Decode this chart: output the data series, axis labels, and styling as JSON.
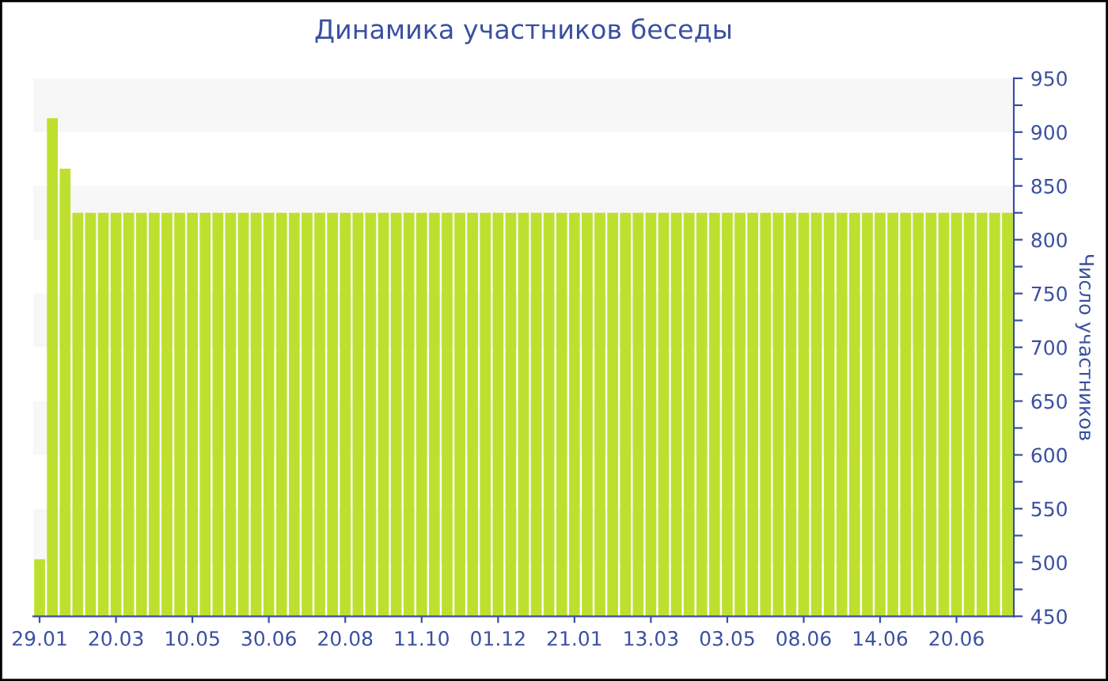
{
  "chart_data": {
    "type": "bar",
    "title": "Динамика участников беседы",
    "ylabel": "Число участников",
    "categories": [
      "29.01",
      null,
      null,
      null,
      null,
      null,
      "20.03",
      null,
      null,
      null,
      null,
      null,
      "10.05",
      null,
      null,
      null,
      null,
      null,
      "30.06",
      null,
      null,
      null,
      null,
      null,
      "20.08",
      null,
      null,
      null,
      null,
      null,
      "11.10",
      null,
      null,
      null,
      null,
      null,
      "01.12",
      null,
      null,
      null,
      null,
      null,
      "21.01",
      null,
      null,
      null,
      null,
      null,
      "13.03",
      null,
      null,
      null,
      null,
      null,
      "03.05",
      null,
      null,
      null,
      null,
      null,
      "08.06",
      null,
      null,
      null,
      null,
      null,
      "14.06",
      null,
      null,
      null,
      null,
      null,
      "20.06",
      null,
      null,
      null,
      null
    ],
    "values": [
      503,
      913,
      866,
      825,
      825,
      825,
      825,
      825,
      825,
      825,
      825,
      825,
      825,
      825,
      825,
      825,
      825,
      825,
      825,
      825,
      825,
      825,
      825,
      825,
      825,
      825,
      825,
      825,
      825,
      825,
      825,
      825,
      825,
      825,
      825,
      825,
      825,
      825,
      825,
      825,
      825,
      825,
      825,
      825,
      825,
      825,
      825,
      825,
      825,
      825,
      825,
      825,
      825,
      825,
      825,
      825,
      825,
      825,
      825,
      825,
      825,
      825,
      825,
      825,
      825,
      825,
      825,
      825,
      825,
      825,
      825,
      825,
      825,
      825,
      825,
      825,
      825
    ],
    "color": "#bde02e",
    "ylim": [
      450,
      950
    ],
    "yticks": [
      450,
      {
        "value": 475,
        "label": null
      },
      500,
      {
        "value": 525,
        "label": null
      },
      550,
      {
        "value": 575,
        "label": null
      },
      600,
      {
        "value": 625,
        "label": null
      },
      650,
      {
        "value": 675,
        "label": null
      },
      700,
      {
        "value": 725,
        "label": null
      },
      750,
      {
        "value": 775,
        "label": null
      },
      800,
      {
        "value": 825,
        "label": null
      },
      850,
      {
        "value": 875,
        "label": null
      },
      900,
      {
        "value": 925,
        "label": null
      },
      950
    ],
    "bands": [
      {
        "axis": "y",
        "from": 500,
        "to": 550,
        "color": "#f7f7f7"
      },
      {
        "axis": "y",
        "from": 600,
        "to": 650,
        "color": "#f7f7f7"
      },
      {
        "axis": "y",
        "from": 700,
        "to": 750,
        "color": "#f7f7f7"
      },
      {
        "axis": "y",
        "from": 800,
        "to": 850,
        "color": "#f7f7f7"
      },
      {
        "axis": "y",
        "from": 900,
        "to": 950,
        "color": "#f7f7f7"
      }
    ],
    "grid": false,
    "legend": false
  }
}
